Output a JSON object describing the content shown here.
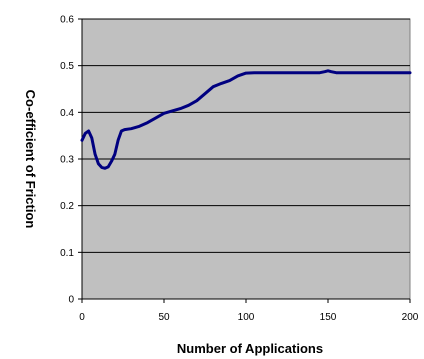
{
  "chart_data": {
    "type": "line",
    "title": "",
    "xlabel": "Number of Applications",
    "ylabel": "Co-efficient of Friction",
    "xlim": [
      0,
      200
    ],
    "ylim": [
      0,
      0.6
    ],
    "x_ticks": [
      0,
      50,
      100,
      150,
      200
    ],
    "y_ticks": [
      0,
      0.1,
      0.2,
      0.3,
      0.4,
      0.5,
      0.6
    ],
    "grid": "horizontal",
    "legend": "none",
    "colors": {
      "plot_background": "#c0c0c0",
      "series_line": "#000080",
      "grid": "#000000"
    },
    "series": [
      {
        "name": "",
        "x": [
          0,
          2,
          4,
          6,
          8,
          10,
          12,
          14,
          16,
          18,
          20,
          22,
          24,
          26,
          30,
          35,
          40,
          45,
          50,
          55,
          60,
          65,
          70,
          75,
          80,
          85,
          90,
          95,
          100,
          105,
          110,
          120,
          130,
          140,
          145,
          148,
          150,
          152,
          155,
          160,
          170,
          180,
          190,
          200
        ],
        "y": [
          0.34,
          0.355,
          0.36,
          0.345,
          0.31,
          0.29,
          0.282,
          0.28,
          0.283,
          0.295,
          0.31,
          0.34,
          0.36,
          0.363,
          0.365,
          0.37,
          0.378,
          0.388,
          0.398,
          0.403,
          0.408,
          0.415,
          0.425,
          0.44,
          0.455,
          0.462,
          0.468,
          0.478,
          0.484,
          0.485,
          0.485,
          0.485,
          0.485,
          0.485,
          0.485,
          0.487,
          0.489,
          0.487,
          0.485,
          0.485,
          0.485,
          0.485,
          0.485,
          0.485
        ]
      }
    ]
  }
}
